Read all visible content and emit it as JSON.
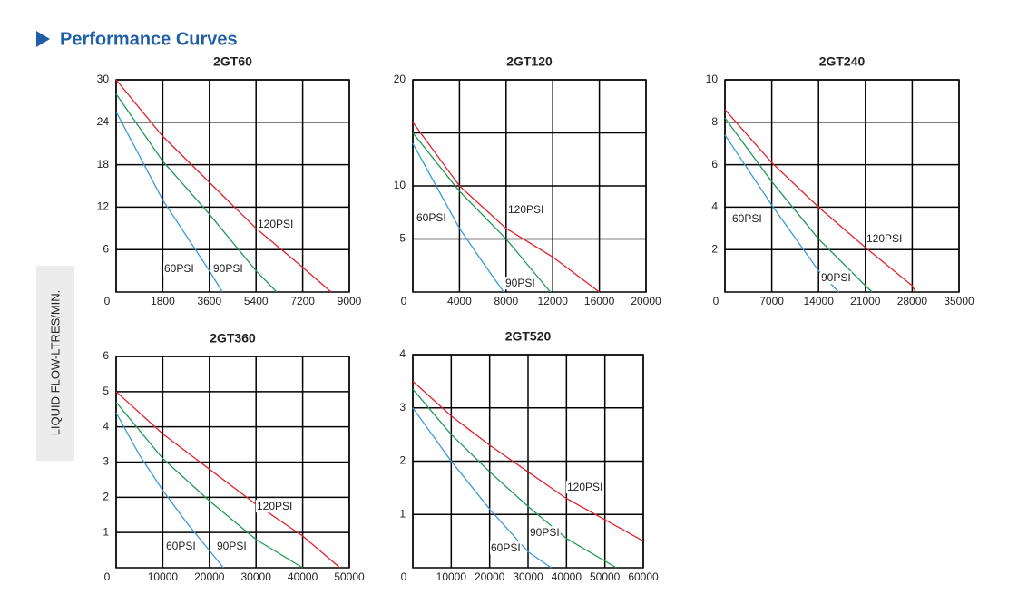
{
  "header": {
    "title": "Performance Curves"
  },
  "y_axis_label": "LIQUID FLOW-LTRES/MIN.",
  "chart_data": [
    {
      "type": "line",
      "title": "2GT60",
      "xlim": [
        0,
        9000
      ],
      "xticks": [
        0,
        1800,
        3600,
        5400,
        7200,
        9000
      ],
      "ylim": [
        0,
        30
      ],
      "yticks": [
        6,
        12,
        18,
        24,
        30
      ],
      "grid": true,
      "series": [
        {
          "name": "60PSI",
          "color": "#3a9ad9",
          "x": [
            0,
            1800,
            3600,
            4100
          ],
          "values": [
            25.5,
            13,
            3,
            0
          ]
        },
        {
          "name": "90PSI",
          "color": "#1e9a52",
          "x": [
            0,
            1800,
            3600,
            5400,
            6200
          ],
          "values": [
            28,
            18.5,
            11,
            3,
            0
          ]
        },
        {
          "name": "120PSI",
          "color": "#e3202b",
          "x": [
            0,
            1800,
            3600,
            5400,
            7200,
            8300
          ],
          "values": [
            30,
            22,
            15.5,
            9,
            3.5,
            0
          ]
        }
      ]
    },
    {
      "type": "line",
      "title": "2GT120",
      "xlim": [
        0,
        20000
      ],
      "xticks": [
        0,
        4000,
        8000,
        12000,
        16000,
        20000
      ],
      "ylim": [
        0,
        20
      ],
      "yticks": [
        5,
        10,
        20
      ],
      "yminor": [
        15
      ],
      "grid": true,
      "series": [
        {
          "name": "60PSI",
          "color": "#3a9ad9",
          "x": [
            0,
            2000,
            4000,
            6000,
            7800
          ],
          "values": [
            14,
            10,
            6,
            2.8,
            0
          ]
        },
        {
          "name": "90PSI",
          "color": "#1e9a52",
          "x": [
            0,
            4000,
            8000,
            11800
          ],
          "values": [
            15,
            9.5,
            5,
            0
          ]
        },
        {
          "name": "120PSI",
          "color": "#e3202b",
          "x": [
            0,
            4000,
            8000,
            12000,
            16000
          ],
          "values": [
            16,
            10,
            6,
            3.3,
            0
          ]
        }
      ]
    },
    {
      "type": "line",
      "title": "2GT240",
      "xlim": [
        0,
        35000
      ],
      "xticks": [
        0,
        7000,
        14000,
        21000,
        28000,
        35000
      ],
      "ylim": [
        0,
        10
      ],
      "yticks": [
        2,
        4,
        6,
        8,
        10
      ],
      "grid": true,
      "series": [
        {
          "name": "60PSI",
          "color": "#3a9ad9",
          "x": [
            0,
            7000,
            14000,
            17000
          ],
          "values": [
            7.4,
            4.1,
            1,
            0
          ]
        },
        {
          "name": "90PSI",
          "color": "#1e9a52",
          "x": [
            0,
            7000,
            14000,
            21000,
            22000
          ],
          "values": [
            8.2,
            5.2,
            2.5,
            0.3,
            0
          ]
        },
        {
          "name": "120PSI",
          "color": "#e3202b",
          "x": [
            0,
            7000,
            14000,
            21000,
            28000,
            28500
          ],
          "values": [
            8.6,
            6.1,
            4,
            2.1,
            0.3,
            0
          ]
        }
      ]
    },
    {
      "type": "line",
      "title": "2GT360",
      "xlim": [
        0,
        50000
      ],
      "xticks": [
        0,
        10000,
        20000,
        30000,
        40000,
        50000
      ],
      "ylim": [
        0,
        6
      ],
      "yticks": [
        1,
        2,
        3,
        4,
        5,
        6
      ],
      "grid": true,
      "series": [
        {
          "name": "60PSI",
          "color": "#3a9ad9",
          "x": [
            0,
            5000,
            10000,
            15000,
            23000
          ],
          "values": [
            4.4,
            3.2,
            2.2,
            1.3,
            0
          ]
        },
        {
          "name": "90PSI",
          "color": "#1e9a52",
          "x": [
            0,
            10000,
            20000,
            30000,
            40000
          ],
          "values": [
            4.7,
            3.1,
            1.9,
            0.8,
            0
          ]
        },
        {
          "name": "120PSI",
          "color": "#e3202b",
          "x": [
            0,
            10000,
            20000,
            30000,
            40000,
            48000
          ],
          "values": [
            5,
            3.8,
            2.8,
            1.8,
            0.9,
            0
          ]
        }
      ]
    },
    {
      "type": "line",
      "title": "2GT520",
      "xlim": [
        0,
        60000
      ],
      "xticks": [
        0,
        10000,
        20000,
        30000,
        40000,
        50000,
        60000
      ],
      "ylim": [
        0,
        4
      ],
      "yticks": [
        1,
        2,
        3,
        4
      ],
      "grid": true,
      "series": [
        {
          "name": "60PSI",
          "color": "#3a9ad9",
          "x": [
            0,
            10000,
            20000,
            30000,
            36000
          ],
          "values": [
            3,
            2,
            1.1,
            0.3,
            0
          ]
        },
        {
          "name": "90PSI",
          "color": "#1e9a52",
          "x": [
            0,
            10000,
            20000,
            30000,
            40000,
            53000
          ],
          "values": [
            3.35,
            2.5,
            1.8,
            1.15,
            0.55,
            0
          ]
        },
        {
          "name": "120PSI",
          "color": "#e3202b",
          "x": [
            0,
            10000,
            20000,
            30000,
            40000,
            50000,
            60000
          ],
          "values": [
            3.5,
            2.85,
            2.3,
            1.8,
            1.3,
            0.9,
            0.5
          ]
        }
      ]
    }
  ]
}
